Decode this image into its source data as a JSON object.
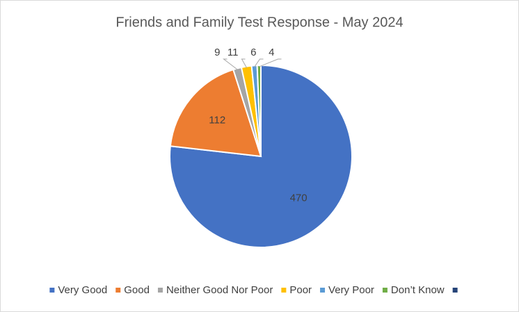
{
  "chart_data": {
    "type": "pie",
    "title": "Friends and Family Test  Response - May 2024",
    "categories": [
      "Very Good",
      "Good",
      "Neither Good Nor Poor",
      "Poor",
      "Very Poor",
      "Don’t Know",
      null
    ],
    "values": [
      470,
      112,
      9,
      11,
      6,
      4,
      0
    ],
    "colors": [
      "#4472c4",
      "#ed7d31",
      "#a5a5a5",
      "#ffc000",
      "#5b9bd5",
      "#70ad47",
      "#264478"
    ],
    "legend": "bottom"
  }
}
